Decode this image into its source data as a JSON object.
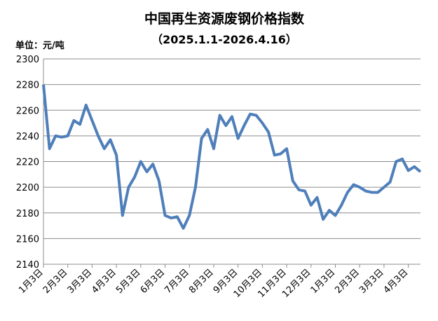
{
  "chart_data": {
    "type": "line",
    "title": "中国再生资源废钢价格指数",
    "subtitle": "（2025.1.1-2026.4.16）",
    "y_axis_label": "单位：元/吨",
    "categories": [
      "1月3日",
      null,
      null,
      null,
      "2月3日",
      null,
      null,
      null,
      "3月3日",
      null,
      null,
      null,
      "4月3日",
      null,
      null,
      null,
      "5月3日",
      null,
      null,
      null,
      "6月3日",
      null,
      null,
      null,
      "7月3日",
      null,
      null,
      null,
      "8月3日",
      null,
      null,
      null,
      "9月3日",
      null,
      null,
      null,
      "10月3日",
      null,
      null,
      null,
      "11月3日",
      null,
      null,
      null,
      "12月3日",
      null,
      null,
      null,
      "1月3日",
      null,
      null,
      null,
      "2月3日",
      null,
      null,
      null,
      "3月3日",
      null,
      null,
      null,
      "4月3日",
      null,
      null
    ],
    "series": [
      {
        "color": "#4f7fba",
        "values": [
          2280,
          2230,
          2240,
          2239,
          2240,
          2252,
          2249,
          2264,
          2252,
          2240,
          2230,
          2237,
          2225,
          2178,
          2200,
          2208,
          2220,
          2212,
          2218,
          2205,
          2178,
          2176,
          2177,
          2168,
          2178,
          2200,
          2238,
          2245,
          2230,
          2256,
          2248,
          2255,
          2238,
          2248,
          2257,
          2256,
          2250,
          2243,
          2225,
          2226,
          2230,
          2205,
          2198,
          2197,
          2186,
          2192,
          2175,
          2182,
          2178,
          2186,
          2196,
          2202,
          2200,
          2197,
          2196,
          2196,
          2200,
          2204,
          2220,
          2222,
          2213,
          2216,
          2212
        ]
      }
    ],
    "ylim": [
      2140,
      2300
    ],
    "yticks": [
      2140,
      2160,
      2180,
      2200,
      2220,
      2240,
      2260,
      2280,
      2300
    ],
    "grid": true
  }
}
